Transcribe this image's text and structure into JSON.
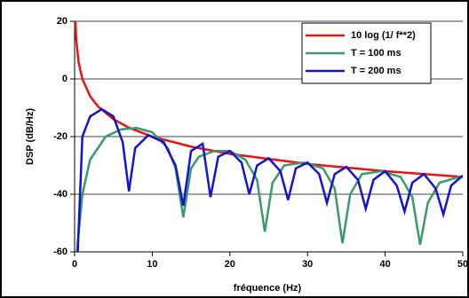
{
  "chart_data": {
    "type": "line",
    "xlabel": "fréquence  (Hz)",
    "ylabel": "DSP  (dB/Hz)",
    "xlim": [
      0,
      50
    ],
    "xticks": [
      0,
      10,
      20,
      30,
      40,
      50
    ],
    "ylim": [
      -60,
      20
    ],
    "yticks": [
      -60,
      -40,
      -20,
      0,
      20
    ],
    "grid": true,
    "legend": "upper right",
    "series": [
      {
        "name": "10 log (1/ f**2)",
        "color": "#ee1111",
        "x": [
          0.1,
          0.2,
          0.5,
          1,
          2,
          3,
          5,
          7,
          10,
          15,
          20,
          30,
          40,
          50
        ],
        "values": [
          20,
          14,
          6,
          0,
          -6,
          -9.5,
          -14,
          -16.9,
          -20,
          -23.5,
          -26,
          -29.5,
          -32,
          -34
        ]
      },
      {
        "name": "T = 100 ms",
        "color": "#3a9a6a",
        "x": [
          0.3,
          1,
          2,
          4,
          6,
          8,
          10,
          12,
          13,
          14,
          15,
          16,
          18,
          20,
          22,
          23.5,
          24.5,
          25.5,
          27,
          29.5,
          32,
          33.5,
          34.5,
          35.5,
          37,
          39.5,
          42,
          43.5,
          44.5,
          45.5,
          47,
          49.5,
          50
        ],
        "values": [
          -60,
          -40,
          -28,
          -20,
          -17.5,
          -17,
          -18.5,
          -24,
          -31,
          -48,
          -31,
          -27,
          -25,
          -25,
          -28,
          -35,
          -53,
          -36,
          -30,
          -29,
          -31,
          -38,
          -57,
          -40,
          -33,
          -32,
          -34,
          -41,
          -57.5,
          -43,
          -36,
          -34,
          -34
        ]
      },
      {
        "name": "T = 200 ms",
        "color": "#1414d0",
        "x": [
          0.4,
          1,
          2,
          3.5,
          5,
          6.2,
          7,
          7.8,
          9.5,
          11.5,
          13,
          14,
          15,
          16.5,
          17.5,
          18.5,
          20,
          21.5,
          22.5,
          23.5,
          25,
          26.5,
          27.5,
          28.5,
          30,
          31.5,
          32.5,
          33.5,
          35,
          36.5,
          37.5,
          38.5,
          40,
          41.5,
          42.5,
          43.5,
          45,
          46.5,
          47.5,
          48.5,
          50
        ],
        "values": [
          -60,
          -20,
          -13,
          -10.5,
          -13,
          -22,
          -39,
          -24,
          -19.5,
          -22,
          -30,
          -44,
          -25,
          -22.5,
          -41,
          -27,
          -25,
          -29,
          -40,
          -30,
          -27.5,
          -32,
          -42,
          -31,
          -29,
          -33,
          -43,
          -33,
          -30.5,
          -35,
          -45,
          -35,
          -32,
          -37,
          -46,
          -36,
          -33,
          -38,
          -47,
          -37,
          -33.5
        ]
      }
    ]
  }
}
